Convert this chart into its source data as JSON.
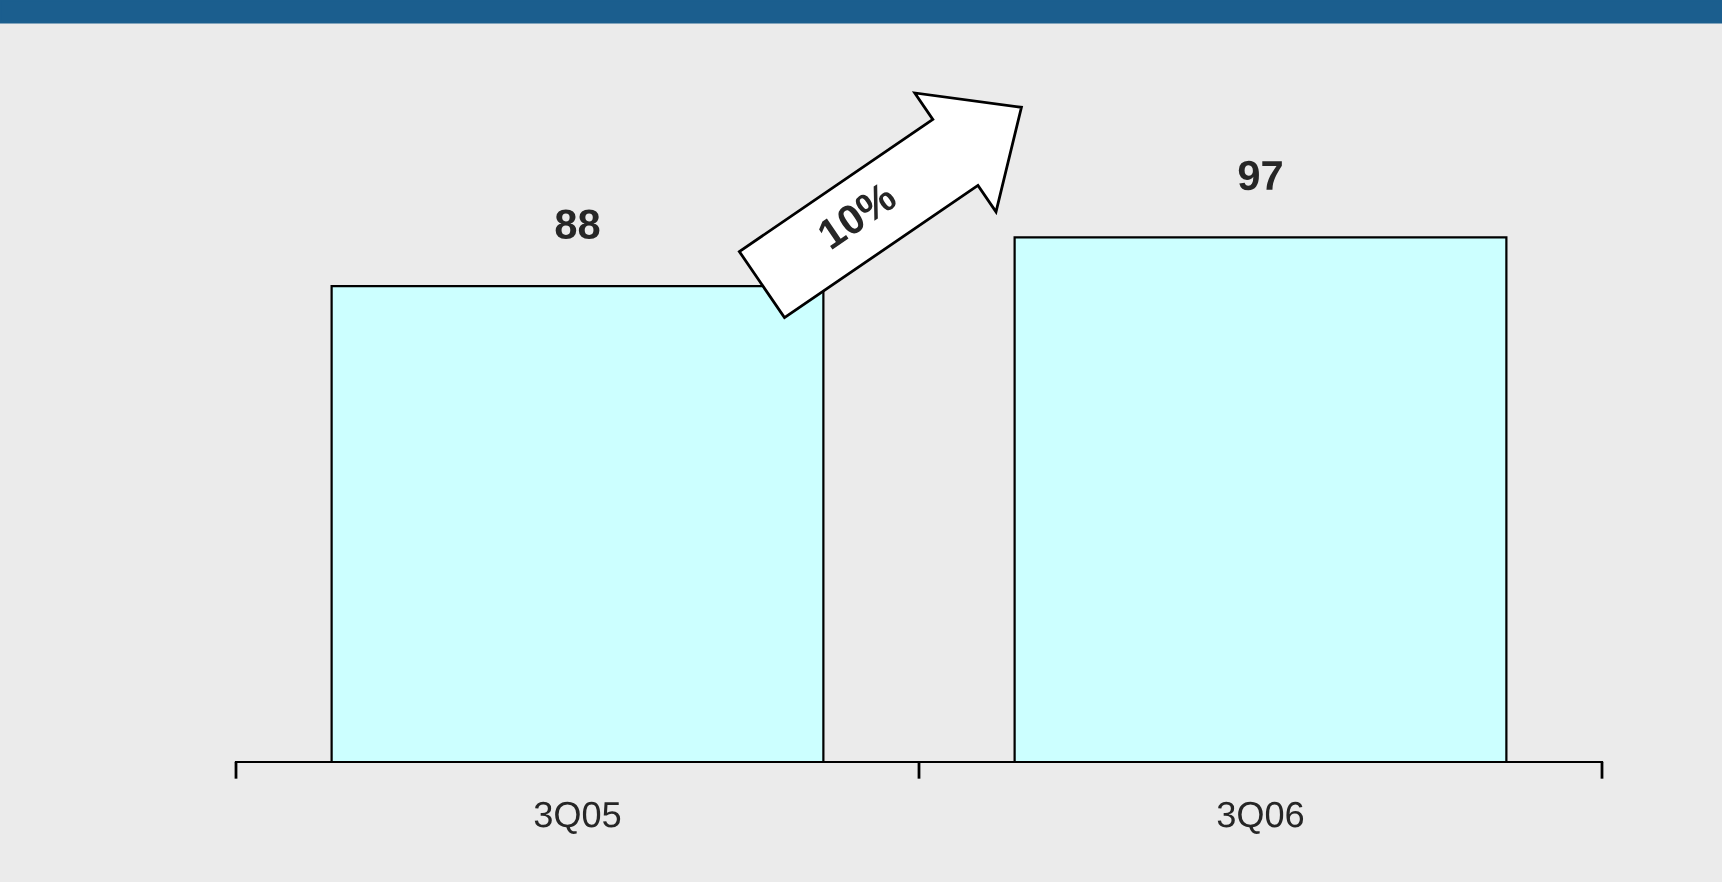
{
  "chart_data": {
    "type": "bar",
    "categories": [
      "3Q05",
      "3Q06"
    ],
    "values": [
      88,
      97
    ],
    "color": "#ccffff",
    "data_labels": true,
    "grid": false,
    "legend": false,
    "tick_labels": "x",
    "annotations": [
      "10%"
    ]
  }
}
